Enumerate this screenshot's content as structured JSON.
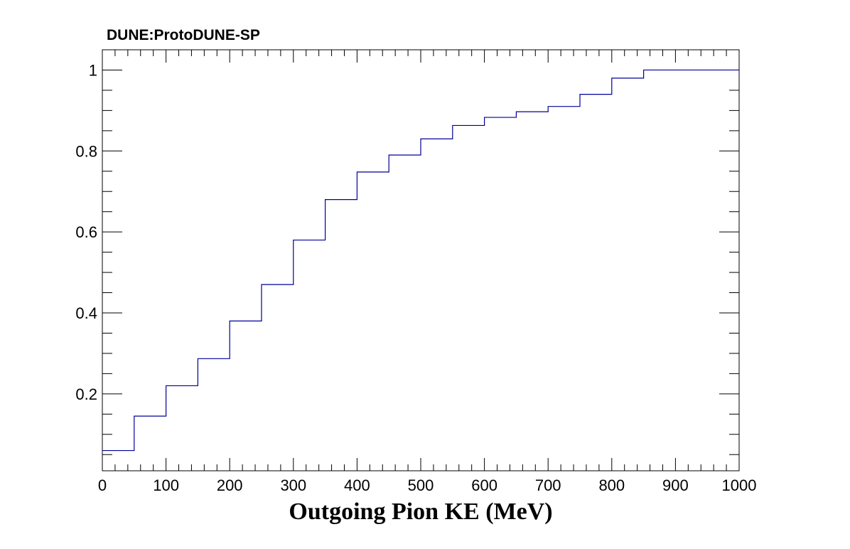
{
  "experiment_label": "DUNE:ProtoDUNE-SP",
  "chart_data": {
    "type": "line",
    "style": "step",
    "title": "",
    "xlabel": "Outgoing Pion KE (MeV)",
    "ylabel": "",
    "xlim": [
      0,
      1000
    ],
    "ylim": [
      0.01,
      1.05
    ],
    "x_ticks": [
      0,
      100,
      200,
      300,
      400,
      500,
      600,
      700,
      800,
      900,
      1000
    ],
    "y_ticks": [
      0.2,
      0.4,
      0.6,
      0.8,
      1
    ],
    "grid": false,
    "legend": "none",
    "line_color": "#000099",
    "bin_edges": [
      0,
      50,
      100,
      150,
      200,
      250,
      300,
      350,
      400,
      450,
      500,
      550,
      600,
      650,
      700,
      750,
      800,
      850,
      900,
      950,
      1000
    ],
    "series": [
      {
        "values": [
          0.06,
          0.145,
          0.22,
          0.287,
          0.38,
          0.47,
          0.58,
          0.68,
          0.748,
          0.79,
          0.83,
          0.863,
          0.883,
          0.897,
          0.91,
          0.94,
          0.98,
          1.0,
          1.0,
          1.0
        ]
      }
    ]
  }
}
